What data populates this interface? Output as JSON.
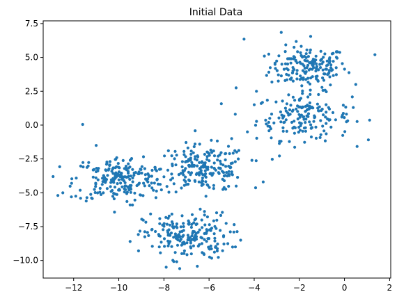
{
  "chart_data": {
    "type": "scatter",
    "title": "Initial Data",
    "xlabel": "",
    "ylabel": "",
    "xlim": [
      -13.35,
      2.05
    ],
    "ylim": [
      -11.3,
      7.7
    ],
    "xticks": [
      -12,
      -10,
      -8,
      -6,
      -4,
      -2,
      0,
      2
    ],
    "yticks": [
      -10.0,
      -7.5,
      -5.0,
      -2.5,
      0.0,
      2.5,
      5.0,
      7.5
    ],
    "xtick_labels": [
      "−12",
      "−10",
      "−8",
      "−6",
      "−4",
      "−2",
      "0",
      "2"
    ],
    "ytick_labels": [
      "−10.0",
      "−7.5",
      "−5.0",
      "−2.5",
      "0.0",
      "2.5",
      "5.0",
      "7.5"
    ],
    "grid": false,
    "point_color": "#1f77b4",
    "clusters": [
      {
        "center": [
          -1.6,
          4.3
        ],
        "std": [
          0.85,
          0.75
        ],
        "count": 170
      },
      {
        "center": [
          -1.8,
          0.6
        ],
        "std": [
          1.05,
          0.85
        ],
        "count": 170
      },
      {
        "center": [
          -6.2,
          -3.2
        ],
        "std": [
          0.95,
          0.85
        ],
        "count": 200
      },
      {
        "center": [
          -10.0,
          -4.0
        ],
        "std": [
          1.0,
          0.85
        ],
        "count": 210
      },
      {
        "center": [
          -7.0,
          -8.2
        ],
        "std": [
          0.95,
          0.85
        ],
        "count": 200
      }
    ],
    "points": [
      [
        -12.7,
        -5.2
      ],
      [
        -11.6,
        0.05
      ],
      [
        -11.0,
        -1.5
      ],
      [
        -4.45,
        6.35
      ],
      [
        -4.8,
        2.75
      ],
      [
        1.35,
        5.2
      ],
      [
        -2.8,
        6.85
      ],
      [
        -1.5,
        6.55
      ],
      [
        -0.5,
        5.3
      ],
      [
        0.5,
        3.0
      ],
      [
        -3.6,
        -4.2
      ],
      [
        -4.1,
        -2.6
      ],
      [
        -4.3,
        -0.5
      ],
      [
        -3.9,
        2.5
      ],
      [
        -4.0,
        1.5
      ],
      [
        -7.3,
        -10.6
      ],
      [
        -7.9,
        -10.5
      ],
      [
        -5.0,
        -3.6
      ],
      [
        -4.6,
        -8.5
      ],
      [
        -4.9,
        -7.9
      ],
      [
        -9.5,
        -8.6
      ],
      [
        -12.1,
        -5.3
      ],
      [
        -5.0,
        -1.0
      ],
      [
        -7.8,
        -1.9
      ],
      [
        -9.5,
        -5.9
      ]
    ]
  }
}
